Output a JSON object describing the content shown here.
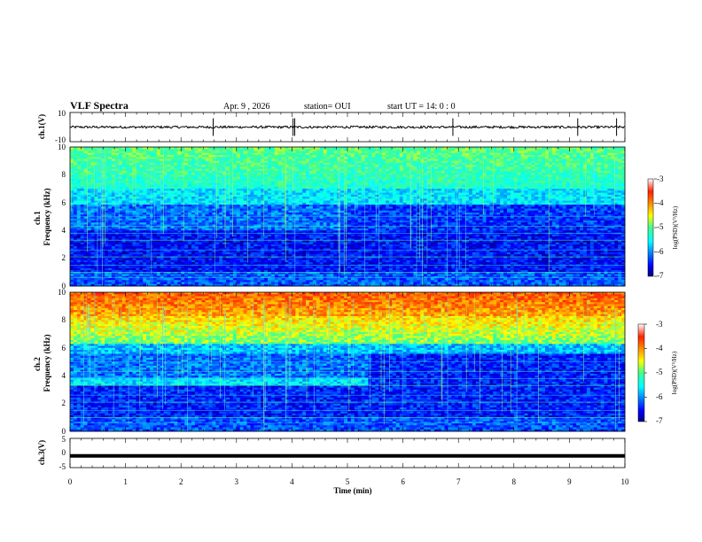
{
  "header": {
    "title": "VLF Spectra",
    "date": "Apr. 9 , 2026",
    "station": "station= OUI",
    "start": "start UT = 14: 0 : 0"
  },
  "chart_data": [
    {
      "type": "line",
      "name": "ch1-waveform",
      "ylabel": "ch.1(V)",
      "ylim": [
        -10,
        10
      ],
      "y_ticks": [
        "10",
        "-10"
      ],
      "xlim": [
        0,
        10
      ],
      "baseline": 0,
      "spikes_min": [
        2.58,
        4.02,
        4.05,
        6.9,
        9.15,
        9.85
      ]
    },
    {
      "type": "heatmap",
      "name": "ch1-spectrogram",
      "ylabel": "ch.1\nFrequency (kHz)",
      "ylim": [
        0,
        10
      ],
      "y_ticks": [
        "0",
        "2",
        "4",
        "6",
        "8",
        "10"
      ],
      "xlim": [
        0,
        10
      ],
      "colorbar": {
        "label": "log(PSD)(V²/Hz)",
        "range": [
          -7,
          -3
        ],
        "ticks": [
          "-3",
          "-4",
          "-5",
          "-6",
          "-7"
        ]
      }
    },
    {
      "type": "heatmap",
      "name": "ch2-spectrogram",
      "ylabel": "ch.2\nFrequency (kHz)",
      "ylim": [
        0,
        10
      ],
      "y_ticks": [
        "0",
        "2",
        "4",
        "6",
        "8",
        "10"
      ],
      "xlim": [
        0,
        10
      ],
      "colorbar": {
        "label": "log(PSD)(V²/Hz)",
        "range": [
          -7,
          -3
        ],
        "ticks": [
          "-3",
          "-4",
          "-5",
          "-6",
          "-7"
        ]
      }
    },
    {
      "type": "line",
      "name": "ch3-waveform",
      "ylabel": "ch.3(V)",
      "ylim": [
        -5,
        5
      ],
      "y_ticks": [
        "5",
        "0",
        "-5"
      ],
      "xlim": [
        0,
        10
      ],
      "value": -1.0
    }
  ],
  "x_axis": {
    "label": "Time (min)",
    "ticks": [
      "0",
      "1",
      "2",
      "3",
      "4",
      "5",
      "6",
      "7",
      "8",
      "9",
      "10"
    ]
  }
}
